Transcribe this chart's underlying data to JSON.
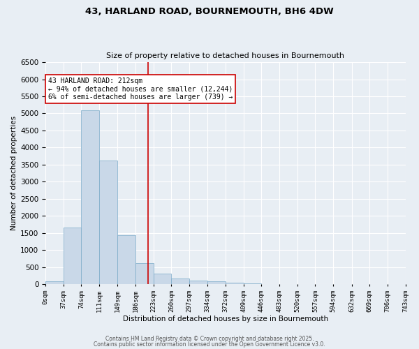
{
  "title1": "43, HARLAND ROAD, BOURNEMOUTH, BH6 4DW",
  "title2": "Size of property relative to detached houses in Bournemouth",
  "xlabel": "Distribution of detached houses by size in Bournemouth",
  "ylabel": "Number of detached properties",
  "bar_color": "#c9d8e8",
  "bar_edge_color": "#7aaac8",
  "bin_edges": [
    0,
    37,
    74,
    111,
    149,
    186,
    223,
    260,
    297,
    334,
    372,
    409,
    446,
    483,
    520,
    557,
    594,
    632,
    669,
    706,
    743
  ],
  "bar_heights": [
    75,
    1650,
    5100,
    3620,
    1430,
    620,
    310,
    155,
    100,
    75,
    50,
    30,
    0,
    0,
    0,
    0,
    0,
    0,
    0,
    0
  ],
  "tick_labels": [
    "0sqm",
    "37sqm",
    "74sqm",
    "111sqm",
    "149sqm",
    "186sqm",
    "223sqm",
    "260sqm",
    "297sqm",
    "334sqm",
    "372sqm",
    "409sqm",
    "446sqm",
    "483sqm",
    "520sqm",
    "557sqm",
    "594sqm",
    "632sqm",
    "669sqm",
    "706sqm",
    "743sqm"
  ],
  "vline_x": 212,
  "vline_color": "#cc0000",
  "annotation_text": "43 HARLAND ROAD: 212sqm\n← 94% of detached houses are smaller (12,244)\n6% of semi-detached houses are larger (739) →",
  "annotation_box_color": "#ffffff",
  "annotation_box_edge": "#cc0000",
  "ylim": [
    0,
    6500
  ],
  "yticks": [
    0,
    500,
    1000,
    1500,
    2000,
    2500,
    3000,
    3500,
    4000,
    4500,
    5000,
    5500,
    6000,
    6500
  ],
  "background_color": "#e8eef4",
  "grid_color": "#ffffff",
  "footer1": "Contains HM Land Registry data © Crown copyright and database right 2025.",
  "footer2": "Contains public sector information licensed under the Open Government Licence v3.0."
}
